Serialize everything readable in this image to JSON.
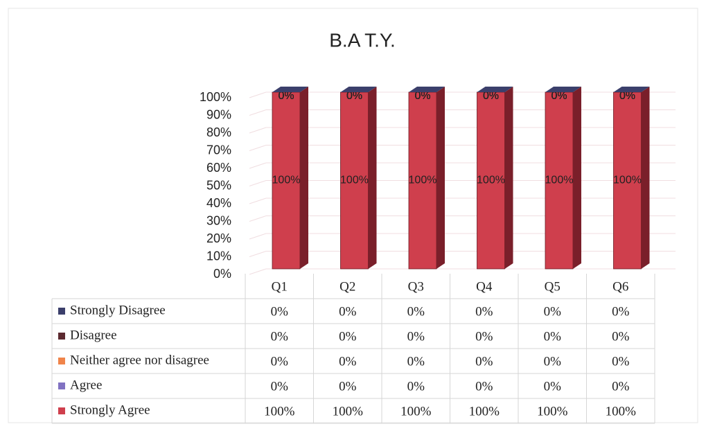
{
  "chart_data": {
    "type": "bar3d_stacked",
    "title": "B.A T.Y.",
    "categories": [
      "Q1",
      "Q2",
      "Q3",
      "Q4",
      "Q5",
      "Q6"
    ],
    "series": [
      {
        "name": "Strongly Disagree",
        "color": "#3b3f6b",
        "values": [
          0,
          0,
          0,
          0,
          0,
          0
        ],
        "value_labels": [
          "0%",
          "0%",
          "0%",
          "0%",
          "0%",
          "0%"
        ]
      },
      {
        "name": "Disagree",
        "color": "#5c2a30",
        "values": [
          0,
          0,
          0,
          0,
          0,
          0
        ],
        "value_labels": [
          "0%",
          "0%",
          "0%",
          "0%",
          "0%",
          "0%"
        ]
      },
      {
        "name": "Neither agree nor disagree",
        "color": "#f0844a",
        "values": [
          0,
          0,
          0,
          0,
          0,
          0
        ],
        "value_labels": [
          "0%",
          "0%",
          "0%",
          "0%",
          "0%",
          "0%"
        ]
      },
      {
        "name": "Agree",
        "color": "#8172c2",
        "values": [
          0,
          0,
          0,
          0,
          0,
          0
        ],
        "value_labels": [
          "0%",
          "0%",
          "0%",
          "0%",
          "0%",
          "0%"
        ]
      },
      {
        "name": "Strongly Agree",
        "color": "#cf3f4d",
        "values": [
          100,
          100,
          100,
          100,
          100,
          100
        ],
        "value_labels": [
          "100%",
          "100%",
          "100%",
          "100%",
          "100%",
          "100%"
        ]
      }
    ],
    "stack_order": "bottom_last",
    "ylim": [
      0,
      100
    ],
    "yticks": [
      {
        "value": 0,
        "label": "0%"
      },
      {
        "value": 10,
        "label": "10%"
      },
      {
        "value": 20,
        "label": "20%"
      },
      {
        "value": 30,
        "label": "30%"
      },
      {
        "value": 40,
        "label": "40%"
      },
      {
        "value": 50,
        "label": "50%"
      },
      {
        "value": 60,
        "label": "60%"
      },
      {
        "value": 70,
        "label": "70%"
      },
      {
        "value": 80,
        "label": "80%"
      },
      {
        "value": 90,
        "label": "90%"
      },
      {
        "value": 100,
        "label": "100%"
      }
    ],
    "grid": true
  }
}
